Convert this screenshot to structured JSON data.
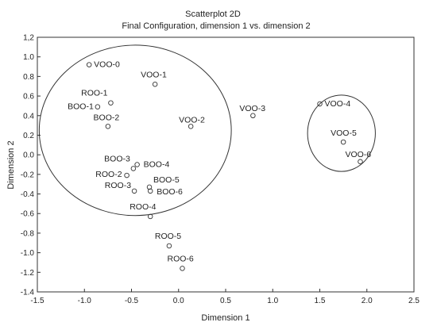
{
  "chart_data": {
    "type": "scatter",
    "title": "Scatterplot 2D",
    "subtitle": "Final Configuration, dimension 1  vs. dimension 2",
    "xlabel": "Dimension 1",
    "ylabel": "Dimension 2",
    "xlim": [
      -1.5,
      2.5
    ],
    "ylim": [
      -1.4,
      1.2
    ],
    "xticks": [
      -1.5,
      -1.0,
      -0.5,
      0.0,
      0.5,
      1.0,
      1.5,
      2.0,
      2.5
    ],
    "xtick_labels": [
      "-1.5",
      "-1.0",
      "-0.5",
      "0.0",
      "0.5",
      "1.0",
      "1.5",
      "2.0",
      "2.5"
    ],
    "yticks": [
      1.2,
      1.0,
      0.8,
      0.6,
      0.4,
      0.2,
      0.0,
      -0.2,
      -0.4,
      -0.6,
      -0.8,
      -1.0,
      -1.2,
      -1.4
    ],
    "ytick_labels": [
      "1,2",
      "1.0",
      "0.8",
      "0.6",
      "0.4",
      "0.2",
      "0.0",
      "-0.2",
      "-0.4",
      "-0.6",
      "-0.8",
      "-1.0",
      "-1.2",
      "-1.4"
    ],
    "grid": false,
    "points": [
      {
        "label": "VOO-0",
        "x": -0.95,
        "y": 0.92
      },
      {
        "label": "VOO-1",
        "x": -0.25,
        "y": 0.72
      },
      {
        "label": "ROO-1",
        "x": -0.72,
        "y": 0.53
      },
      {
        "label": "BOO-1",
        "x": -0.86,
        "y": 0.49
      },
      {
        "label": "BOO-2",
        "x": -0.75,
        "y": 0.29
      },
      {
        "label": "VOO-2",
        "x": 0.13,
        "y": 0.29
      },
      {
        "label": "VOO-3",
        "x": 0.79,
        "y": 0.4
      },
      {
        "label": "VOO-4",
        "x": 1.5,
        "y": 0.52
      },
      {
        "label": "VOO-5",
        "x": 1.75,
        "y": 0.13
      },
      {
        "label": "VOO-6",
        "x": 1.93,
        "y": -0.07
      },
      {
        "label": "BOO-3",
        "x": -0.48,
        "y": -0.14
      },
      {
        "label": "BOO-4",
        "x": -0.44,
        "y": -0.1
      },
      {
        "label": "ROO-2",
        "x": -0.55,
        "y": -0.21
      },
      {
        "label": "ROO-3",
        "x": -0.47,
        "y": -0.37
      },
      {
        "label": "BOO-5",
        "x": -0.31,
        "y": -0.33
      },
      {
        "label": "BOO-6",
        "x": -0.3,
        "y": -0.37
      },
      {
        "label": "ROO-4",
        "x": -0.3,
        "y": -0.63
      },
      {
        "label": "ROO-5",
        "x": -0.1,
        "y": -0.93
      },
      {
        "label": "ROO-6",
        "x": 0.04,
        "y": -1.16
      }
    ],
    "clusters": [
      {
        "cx": -0.46,
        "cy": 0.25,
        "rx": 1.02,
        "ry": 0.87
      },
      {
        "cx": 1.73,
        "cy": 0.22,
        "rx": 0.36,
        "ry": 0.39
      }
    ]
  }
}
